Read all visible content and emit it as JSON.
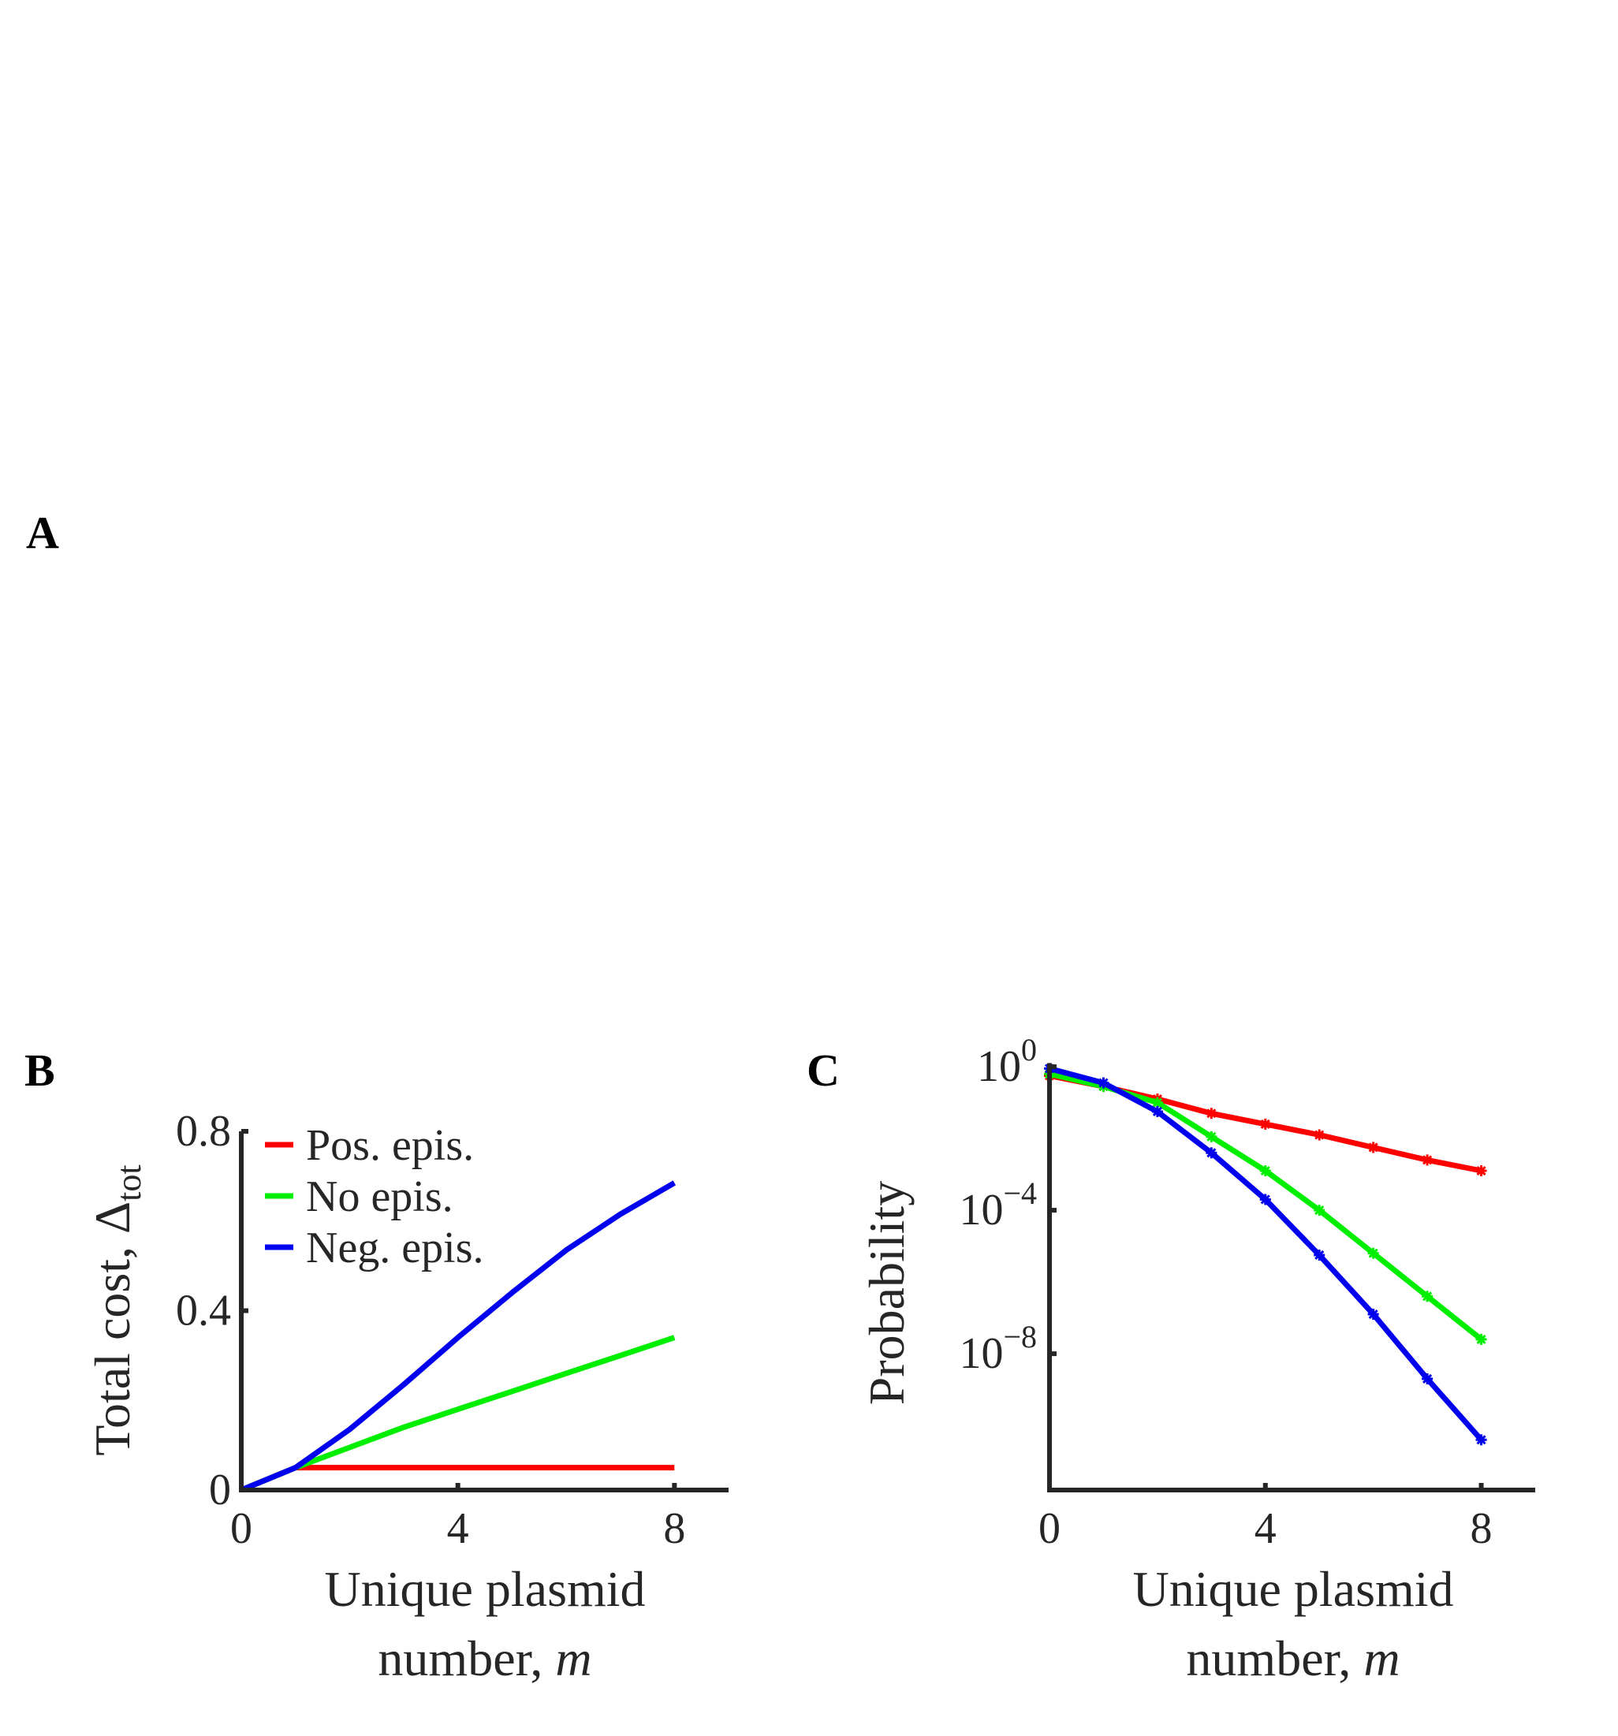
{
  "panel_labels": {
    "a": "A",
    "b": "B",
    "c": "C"
  },
  "colors": {
    "pos": "#ff0000",
    "none": "#00ee00",
    "neg": "#0000ee",
    "axis": "#262626"
  },
  "chart_data": [
    {
      "panel": "B",
      "type": "line",
      "xlabel": "Unique plasmid number, m",
      "xlabel_line1": "Unique plasmid",
      "xlabel_line2_prefix": "number, ",
      "xlabel_var": "m",
      "ylabel_prefix": "Total cost, Δ",
      "ylabel_sub": "tot",
      "xlim": [
        0,
        9
      ],
      "ylim": [
        0,
        0.8
      ],
      "xticks": [
        0,
        4,
        8
      ],
      "xtick_labels": [
        "0",
        "4",
        "8"
      ],
      "yticks": [
        0,
        0.4,
        0.8
      ],
      "ytick_labels": [
        "0",
        "0.4",
        "0.8"
      ],
      "grid": false,
      "legend_position": "top-left",
      "x": [
        0,
        1,
        2,
        3,
        4,
        5,
        6,
        7,
        8
      ],
      "series": [
        {
          "name": "Pos. epis.",
          "color_key": "pos",
          "values": [
            0,
            0.05,
            0.05,
            0.05,
            0.05,
            0.05,
            0.05,
            0.05,
            0.05
          ]
        },
        {
          "name": "No epis.",
          "color_key": "none",
          "values": [
            0,
            0.05,
            0.095,
            0.14,
            0.18,
            0.22,
            0.26,
            0.3,
            0.34
          ]
        },
        {
          "name": "Neg. epis.",
          "color_key": "neg",
          "values": [
            0,
            0.05,
            0.135,
            0.235,
            0.34,
            0.44,
            0.535,
            0.615,
            0.685
          ]
        }
      ]
    },
    {
      "panel": "C",
      "type": "line",
      "xlabel": "Unique plasmid number, m",
      "xlabel_line1": "Unique plasmid",
      "xlabel_line2_prefix": "number, ",
      "xlabel_var": "m",
      "ylabel": "Probability",
      "xlim": [
        0,
        9
      ],
      "ylim_log10": [
        -11.8,
        0.1
      ],
      "yscale": "log",
      "xticks": [
        0,
        4,
        8
      ],
      "xtick_labels": [
        "0",
        "4",
        "8"
      ],
      "yticks_log10": [
        0,
        -4,
        -8
      ],
      "ytick_base": "10",
      "ytick_exponents": [
        "0",
        "−4",
        "−8"
      ],
      "grid": false,
      "markers": true,
      "x": [
        0,
        1,
        2,
        3,
        4,
        5,
        6,
        7,
        8
      ],
      "series": [
        {
          "name": "Pos. epis.",
          "color_key": "pos",
          "log10_values": [
            -0.25,
            -0.55,
            -0.9,
            -1.3,
            -1.6,
            -1.9,
            -2.25,
            -2.6,
            -2.9
          ]
        },
        {
          "name": "No epis.",
          "color_key": "none",
          "log10_values": [
            -0.2,
            -0.55,
            -1.0,
            -1.95,
            -2.9,
            -4.0,
            -5.2,
            -6.4,
            -7.6
          ]
        },
        {
          "name": "Neg. epis.",
          "color_key": "neg",
          "log10_values": [
            -0.05,
            -0.45,
            -1.25,
            -2.4,
            -3.7,
            -5.25,
            -6.9,
            -8.7,
            -10.4
          ]
        }
      ]
    }
  ]
}
